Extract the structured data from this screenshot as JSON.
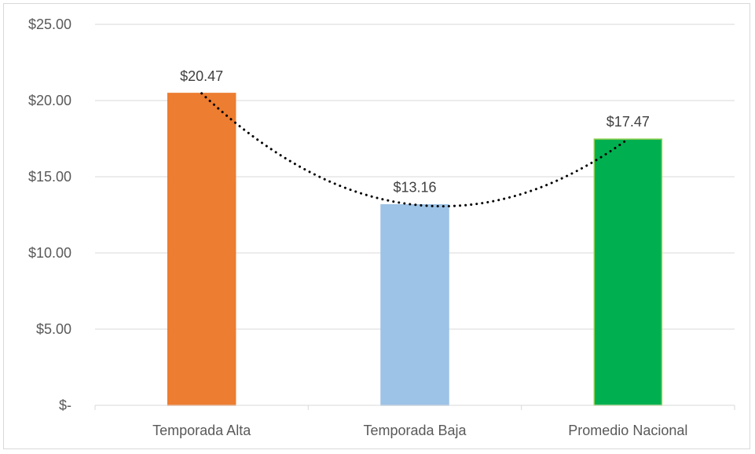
{
  "chart_data": {
    "type": "bar",
    "categories": [
      "Temporada Alta",
      "Temporada Baja",
      "Promedio Nacional"
    ],
    "values": [
      20.47,
      13.16,
      17.47
    ],
    "data_labels": [
      "$20.47",
      "$13.16",
      "$17.47"
    ],
    "bar_colors": [
      "#ed7d31",
      "#9dc3e6",
      "#00b050"
    ],
    "bar_edge_colors": [
      "#ed7d31",
      "#9dc3e6",
      "#92d050"
    ],
    "ylim": [
      0,
      25
    ],
    "y_ticks": [
      0,
      5,
      10,
      15,
      20,
      25
    ],
    "y_tick_labels": [
      "$-",
      "$5.00",
      "$10.00",
      "$15.00",
      "$20.00",
      "$25.00"
    ],
    "grid": true,
    "trendline": {
      "type": "polynomial",
      "style": "dotted",
      "color": "#000000"
    },
    "title": "",
    "xlabel": "",
    "ylabel": ""
  }
}
